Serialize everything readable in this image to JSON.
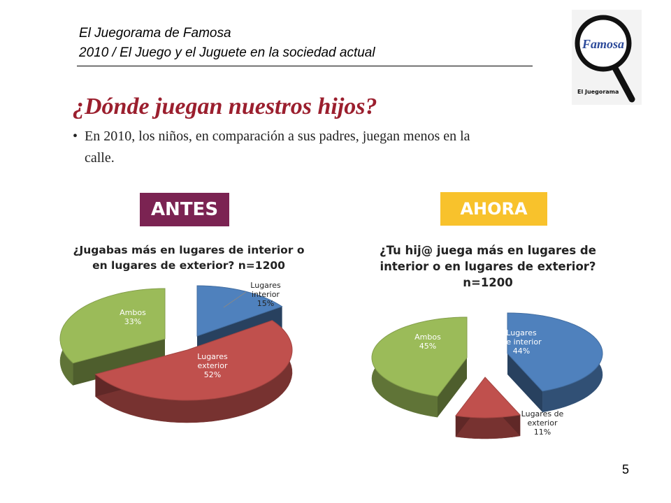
{
  "header": {
    "line1": "El Juegorama de Famosa",
    "line2": "2010 / El Juego y el Juguete en la sociedad actual"
  },
  "logo": {
    "brand": "Famosa",
    "caption": "El Juegorama"
  },
  "slide": {
    "title": "¿Dónde juegan nuestros hijos?",
    "bullet": "•",
    "text_line1": "En 2010, los niños, en comparación a sus padres, juegan menos en la",
    "text_line2": "calle."
  },
  "badges": {
    "before": "ANTES",
    "now": "AHORA"
  },
  "page_number": "5",
  "colors": {
    "interior": "#4f81bd",
    "exterior": "#c0504d",
    "ambos": "#9bbb59",
    "title": "#9b1f2e",
    "antes": "#7b2352",
    "ahora": "#f8c22c"
  },
  "chart_data": [
    {
      "type": "pie",
      "title_lines": [
        "¿Jugabas más en lugares de interior o",
        "en lugares de exterior? n=1200"
      ],
      "slices": [
        {
          "label_lines": [
            "Lugares",
            "interior"
          ],
          "pct_text": "15%",
          "value": 15,
          "color": "#4f81bd"
        },
        {
          "label_lines": [
            "Lugares",
            "exterior"
          ],
          "pct_text": "52%",
          "value": 52,
          "color": "#c0504d"
        },
        {
          "label_lines": [
            "Ambos"
          ],
          "pct_text": "33%",
          "value": 33,
          "color": "#9bbb59"
        }
      ]
    },
    {
      "type": "pie",
      "title_lines": [
        "¿Tu hij@ juega más en lugares de",
        "interior o en lugares de exterior?",
        "n=1200"
      ],
      "slices": [
        {
          "label_lines": [
            "Lugares",
            "de interior"
          ],
          "pct_text": "44%",
          "value": 44,
          "color": "#4f81bd"
        },
        {
          "label_lines": [
            "Lugares de",
            "exterior"
          ],
          "pct_text": "11%",
          "value": 11,
          "color": "#c0504d"
        },
        {
          "label_lines": [
            "Ambos"
          ],
          "pct_text": "45%",
          "value": 45,
          "color": "#9bbb59"
        }
      ]
    }
  ]
}
